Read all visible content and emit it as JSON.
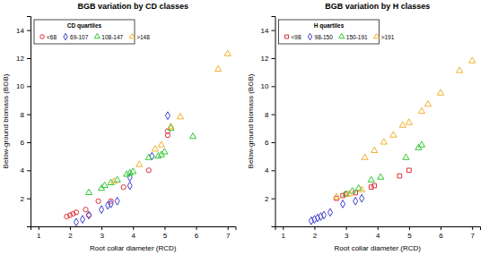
{
  "chart_data": [
    {
      "type": "scatter",
      "title": "BGB variation by CD classes",
      "x_label": "Root collar diameter (RCD)",
      "y_label": "Below-ground biomass (BGB)",
      "legend_title": "CD quartiles",
      "legend": "top-left",
      "xlim": [
        0.75,
        7.25
      ],
      "xticks": [
        1,
        2,
        3,
        4,
        5,
        6,
        7
      ],
      "ylim": [
        0,
        15
      ],
      "yticks": [
        2,
        4,
        6,
        8,
        10,
        12,
        14
      ],
      "series": [
        {
          "name": "<68",
          "color": "#e0303a",
          "marker": "circle",
          "x": [
            1.9,
            2.0,
            2.1,
            2.2,
            2.5,
            2.6,
            2.9,
            3.3,
            3.7,
            4.5,
            5.1,
            5.1
          ],
          "values": [
            0.7,
            0.8,
            0.9,
            1.0,
            1.2,
            0.8,
            1.8,
            1.8,
            2.8,
            4.0,
            6.5,
            6.8
          ]
        },
        {
          "name": "69-107",
          "color": "#4040d0",
          "marker": "diamond",
          "x": [
            2.2,
            2.4,
            2.6,
            3.0,
            3.2,
            3.3,
            3.5,
            3.9,
            3.9,
            4.6,
            5.1
          ],
          "values": [
            0.3,
            0.5,
            0.8,
            1.2,
            1.5,
            1.6,
            1.8,
            2.9,
            3.5,
            5.0,
            7.9
          ]
        },
        {
          "name": "108-147",
          "color": "#30c830",
          "marker": "triangle",
          "x": [
            2.6,
            3.0,
            3.1,
            3.3,
            3.5,
            3.8,
            3.9,
            4.0,
            4.5,
            4.8,
            4.9,
            5.0,
            5.9,
            5.2
          ],
          "values": [
            2.4,
            2.7,
            2.9,
            3.1,
            3.3,
            3.7,
            3.8,
            3.9,
            4.9,
            5.0,
            5.1,
            5.3,
            6.4,
            7.0
          ]
        },
        {
          "name": ">148",
          "color": "#f0b030",
          "marker": "triangle",
          "x": [
            3.4,
            4.2,
            4.7,
            4.9,
            5.2,
            5.5,
            6.7,
            7.0
          ],
          "values": [
            3.2,
            4.4,
            5.5,
            5.8,
            7.1,
            7.8,
            11.2,
            12.3
          ]
        }
      ]
    },
    {
      "type": "scatter",
      "title": "BGB variation by H classes",
      "x_label": "Root collar diameter (RCD)",
      "y_label": "Below-ground biomass (BGB)",
      "legend_title": "H quartiles",
      "legend": "top-left",
      "xlim": [
        0.75,
        7.25
      ],
      "xticks": [
        1,
        2,
        3,
        4,
        5,
        6,
        7
      ],
      "ylim": [
        0,
        15
      ],
      "yticks": [
        2,
        4,
        6,
        8,
        10,
        12,
        14
      ],
      "series": [
        {
          "name": "<98",
          "color": "#e0303a",
          "marker": "square",
          "x": [
            2.7,
            2.9,
            3.0,
            3.3,
            3.8,
            3.9,
            4.7,
            5.0
          ],
          "values": [
            2.0,
            2.2,
            2.3,
            2.4,
            2.8,
            2.9,
            3.6,
            4.0
          ]
        },
        {
          "name": "98-150",
          "color": "#4040d0",
          "marker": "diamond",
          "x": [
            1.9,
            2.0,
            2.1,
            2.2,
            2.3,
            2.5,
            2.9,
            3.3,
            3.5
          ],
          "values": [
            0.4,
            0.5,
            0.6,
            0.7,
            0.8,
            1.0,
            1.6,
            1.8,
            2.0
          ]
        },
        {
          "name": "150-191",
          "color": "#30c830",
          "marker": "triangle",
          "x": [
            3.0,
            3.2,
            3.4,
            3.8,
            4.1,
            4.9,
            5.3,
            5.4
          ],
          "values": [
            2.3,
            2.5,
            2.7,
            3.3,
            3.5,
            4.9,
            5.6,
            5.8
          ]
        },
        {
          "name": ">191",
          "color": "#f0b030",
          "marker": "triangle",
          "x": [
            2.7,
            3.1,
            3.5,
            3.6,
            3.9,
            4.2,
            4.5,
            4.8,
            5.0,
            5.4,
            5.6,
            6.0,
            6.6,
            7.0
          ],
          "values": [
            2.1,
            2.3,
            2.6,
            4.9,
            5.4,
            6.0,
            6.5,
            7.2,
            7.4,
            8.2,
            8.7,
            9.5,
            11.1,
            11.8
          ]
        }
      ]
    }
  ]
}
